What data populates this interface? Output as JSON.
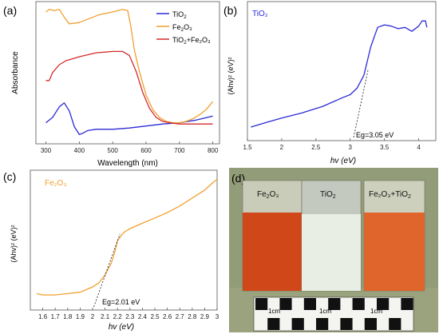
{
  "chart_data": [
    {
      "panel_label": "(a)",
      "type": "line",
      "xlabel": "Wavelength (nm)",
      "ylabel": "Absorbance",
      "xlim": [
        270,
        820
      ],
      "ylim": [
        0,
        1
      ],
      "x_ticks": [
        300,
        400,
        500,
        600,
        700,
        800
      ],
      "y_ticks_shown": false,
      "legend_position": "top-right",
      "series": [
        {
          "name_base": "TiO",
          "name_sub": "2",
          "name_rest": "",
          "color": "#2a2ad6",
          "x": [
            300,
            320,
            340,
            355,
            370,
            385,
            400,
            410,
            425,
            450,
            500,
            550,
            600,
            650,
            700,
            750,
            800
          ],
          "y": [
            0.13,
            0.17,
            0.25,
            0.28,
            0.22,
            0.1,
            0.04,
            0.05,
            0.07,
            0.08,
            0.08,
            0.09,
            0.105,
            0.12,
            0.13,
            0.15,
            0.18
          ]
        },
        {
          "name_base": "Fe",
          "name_sub": "2",
          "name_rest": "O₃",
          "color": "#f0a030",
          "x": [
            300,
            310,
            325,
            340,
            355,
            370,
            400,
            430,
            460,
            500,
            530,
            545,
            555,
            565,
            580,
            600,
            620,
            640,
            660,
            680,
            700,
            720,
            740,
            760,
            780,
            800
          ],
          "y": [
            0.97,
            0.99,
            0.98,
            0.99,
            0.93,
            0.88,
            0.89,
            0.92,
            0.95,
            0.97,
            0.99,
            0.98,
            0.85,
            0.68,
            0.52,
            0.34,
            0.23,
            0.17,
            0.14,
            0.13,
            0.13,
            0.14,
            0.16,
            0.19,
            0.23,
            0.29
          ]
        },
        {
          "name_base": "TiO",
          "name_sub": "2",
          "name_rest": "+Fe₂O₃",
          "color": "#d42a2a",
          "x": [
            300,
            310,
            320,
            340,
            360,
            400,
            450,
            500,
            530,
            550,
            570,
            590,
            610,
            630,
            650,
            670,
            700,
            730,
            760,
            800
          ],
          "y": [
            0.45,
            0.45,
            0.51,
            0.57,
            0.6,
            0.63,
            0.66,
            0.67,
            0.67,
            0.64,
            0.52,
            0.36,
            0.24,
            0.17,
            0.14,
            0.13,
            0.12,
            0.12,
            0.12,
            0.12
          ]
        }
      ]
    },
    {
      "panel_label": "(b)",
      "type": "line",
      "title": "TiO₂",
      "xlabel": "hv (eV)",
      "ylabel": "(Ahv)² (eV)²",
      "xlim": [
        1.5,
        4.25
      ],
      "x_ticks": [
        1.5,
        2.0,
        2.5,
        3.0,
        3.5,
        4.0
      ],
      "y_ticks_shown": false,
      "color": "#2a2ad6",
      "annotation": "Eg=3.05 eV",
      "x": [
        1.55,
        1.8,
        2.0,
        2.3,
        2.6,
        2.9,
        3.0,
        3.1,
        3.2,
        3.3,
        3.4,
        3.5,
        3.6,
        3.7,
        3.8,
        3.9,
        4.0,
        4.05,
        4.1,
        4.12
      ],
      "y": [
        0.08,
        0.12,
        0.15,
        0.19,
        0.24,
        0.31,
        0.33,
        0.38,
        0.48,
        0.7,
        0.85,
        0.87,
        0.86,
        0.84,
        0.85,
        0.82,
        0.86,
        0.9,
        0.9,
        0.85
      ],
      "tangent_x": [
        3.05,
        3.26
      ],
      "tangent_y": [
        0.0,
        0.52
      ]
    },
    {
      "panel_label": "(c)",
      "type": "line",
      "title": "Fe₂O₃",
      "xlabel": "hv (eV)",
      "ylabel": "(Ahv)² (eV)²",
      "xlim": [
        1.5,
        3.0
      ],
      "x_ticks": [
        1.6,
        1.7,
        1.8,
        1.9,
        2.0,
        2.1,
        2.2,
        2.3,
        2.4,
        2.5,
        2.6,
        2.7,
        2.8,
        2.9,
        3.0
      ],
      "y_ticks_shown": false,
      "color": "#f0a030",
      "annotation": "Eg=2.01 eV",
      "x": [
        1.55,
        1.6,
        1.7,
        1.8,
        1.9,
        1.95,
        2.0,
        2.05,
        2.1,
        2.15,
        2.18,
        2.2,
        2.25,
        2.3,
        2.4,
        2.5,
        2.6,
        2.7,
        2.8,
        2.9,
        2.97,
        3.0
      ],
      "y": [
        0.1,
        0.09,
        0.09,
        0.1,
        0.11,
        0.13,
        0.15,
        0.18,
        0.24,
        0.33,
        0.42,
        0.5,
        0.56,
        0.59,
        0.63,
        0.67,
        0.71,
        0.76,
        0.82,
        0.88,
        0.94,
        0.96
      ],
      "tangent_x": [
        2.01,
        2.22
      ],
      "tangent_y": [
        0.0,
        0.55
      ]
    }
  ],
  "photo": {
    "panel_label": "(d)",
    "samples": [
      {
        "base": "Fe",
        "sub": "2",
        "rest": "O₃",
        "fill": "#d0481a"
      },
      {
        "base": "TiO",
        "sub": "2",
        "rest": "",
        "fill": "#e8eee4"
      },
      {
        "base": "Fe₂O₃+TiO",
        "sub": "2",
        "rest": "",
        "fill": "#e0652c"
      }
    ],
    "ruler_labels": [
      "1cm",
      "1cm",
      "1cm"
    ]
  },
  "colors": {
    "tio2": "#2a2ad6",
    "fe2o3": "#f0a030",
    "composite": "#d42a2a"
  }
}
